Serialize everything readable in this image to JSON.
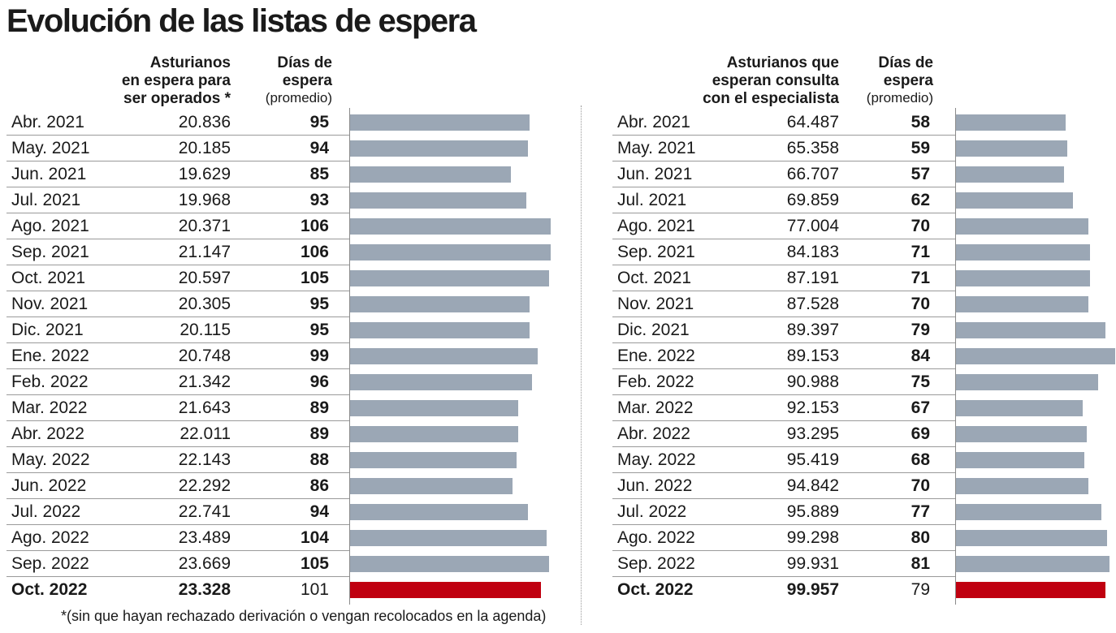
{
  "title": "Evolución de las listas de espera",
  "footnote": "*(sin que hayan rechazado derivación o vengan recolocados en la agenda)",
  "colors": {
    "bar": "#9ba7b5",
    "highlight": "#c00010"
  },
  "chart_data": [
    {
      "type": "bar",
      "orientation": "horizontal",
      "header_count": [
        "Asturianos",
        "en espera para",
        "ser operados *"
      ],
      "header_days": [
        "Días de",
        "espera"
      ],
      "header_days_sub": "(promedio)",
      "categories": [
        "Abr. 2021",
        "May. 2021",
        "Jun. 2021",
        "Jul. 2021",
        "Ago. 2021",
        "Sep. 2021",
        "Oct. 2021",
        "Nov. 2021",
        "Dic. 2021",
        "Ene. 2022",
        "Feb. 2022",
        "Mar. 2022",
        "Abr. 2022",
        "May. 2022",
        "Jun. 2022",
        "Jul. 2022",
        "Ago. 2022",
        "Sep. 2022",
        "Oct. 2022"
      ],
      "counts": [
        "20.836",
        "20.185",
        "19.629",
        "19.968",
        "20.371",
        "21.147",
        "20.597",
        "20.305",
        "20.115",
        "20.748",
        "21.342",
        "21.643",
        "22.011",
        "22.143",
        "22.292",
        "22.741",
        "23.489",
        "23.669",
        "23.328"
      ],
      "values": [
        95,
        94,
        85,
        93,
        106,
        106,
        105,
        95,
        95,
        99,
        96,
        89,
        89,
        88,
        86,
        94,
        104,
        105,
        101
      ],
      "highlight": "Oct. 2022"
    },
    {
      "type": "bar",
      "orientation": "horizontal",
      "header_count": [
        "Asturianos que",
        "esperan consulta",
        "con el especialista"
      ],
      "header_days": [
        "Días de",
        "espera"
      ],
      "header_days_sub": "(promedio)",
      "categories": [
        "Abr. 2021",
        "May. 2021",
        "Jun. 2021",
        "Jul. 2021",
        "Ago. 2021",
        "Sep. 2021",
        "Oct. 2021",
        "Nov. 2021",
        "Dic. 2021",
        "Ene. 2022",
        "Feb. 2022",
        "Mar. 2022",
        "Abr. 2022",
        "May. 2022",
        "Jun. 2022",
        "Jul. 2022",
        "Ago. 2022",
        "Sep. 2022",
        "Oct. 2022"
      ],
      "counts": [
        "64.487",
        "65.358",
        "66.707",
        "69.859",
        "77.004",
        "84.183",
        "87.191",
        "87.528",
        "89.397",
        "89.153",
        "90.988",
        "92.153",
        "93.295",
        "95.419",
        "94.842",
        "95.889",
        "99.298",
        "99.931",
        "99.957"
      ],
      "values": [
        58,
        59,
        57,
        62,
        70,
        71,
        71,
        70,
        79,
        84,
        75,
        67,
        69,
        68,
        70,
        77,
        80,
        81,
        79
      ],
      "highlight": "Oct. 2022"
    }
  ]
}
